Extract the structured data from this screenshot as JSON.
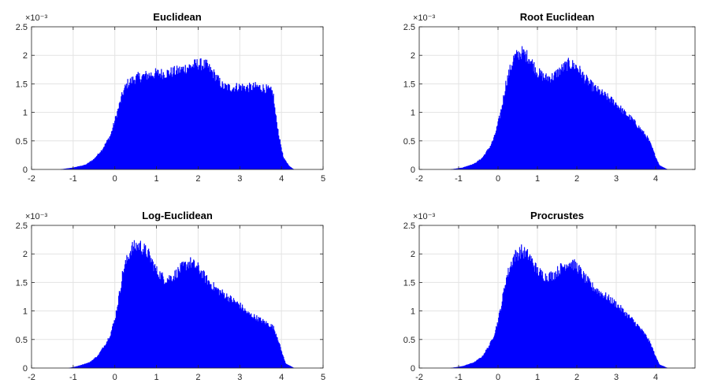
{
  "chart_data": [
    {
      "type": "area",
      "title": "Euclidean",
      "xlim": [
        -2,
        5
      ],
      "ylim": [
        0,
        2.5
      ],
      "y_scale_label": "×10⁻³",
      "xticks": [
        "-2",
        "-1",
        "0",
        "1",
        "2",
        "3",
        "4",
        "5"
      ],
      "yticks": [
        "0",
        "0.5",
        "1",
        "1.5",
        "2",
        "2.5"
      ],
      "grid": true,
      "color": "#0000ff",
      "x": [
        -1.3,
        -1.0,
        -0.7,
        -0.5,
        -0.3,
        -0.1,
        0.0,
        0.1,
        0.2,
        0.3,
        0.5,
        0.8,
        1.0,
        1.2,
        1.5,
        1.8,
        2.0,
        2.2,
        2.4,
        2.6,
        2.8,
        3.0,
        3.2,
        3.4,
        3.6,
        3.8,
        3.85,
        3.95,
        4.05,
        4.2,
        4.3
      ],
      "y": [
        0.0,
        0.03,
        0.08,
        0.18,
        0.35,
        0.6,
        0.85,
        1.1,
        1.35,
        1.5,
        1.6,
        1.65,
        1.68,
        1.68,
        1.72,
        1.8,
        1.85,
        1.82,
        1.65,
        1.45,
        1.43,
        1.45,
        1.43,
        1.45,
        1.42,
        1.35,
        1.0,
        0.55,
        0.2,
        0.05,
        0.0
      ]
    },
    {
      "type": "area",
      "title": "Root Euclidean",
      "xlim": [
        -2,
        5
      ],
      "ylim": [
        0,
        2.5
      ],
      "y_scale_label": "×10⁻³",
      "xticks": [
        "-2",
        "-1",
        "0",
        "1",
        "2",
        "3",
        "4"
      ],
      "yticks": [
        "0",
        "0.5",
        "1",
        "1.5",
        "2",
        "2.5"
      ],
      "grid": true,
      "color": "#0000ff",
      "x": [
        -1.2,
        -0.9,
        -0.6,
        -0.4,
        -0.2,
        -0.1,
        0.0,
        0.1,
        0.2,
        0.4,
        0.6,
        0.8,
        1.0,
        1.2,
        1.4,
        1.6,
        1.8,
        2.0,
        2.2,
        2.4,
        2.6,
        2.8,
        3.0,
        3.2,
        3.4,
        3.6,
        3.8,
        3.9,
        4.0,
        4.1,
        4.3
      ],
      "y": [
        0.0,
        0.03,
        0.1,
        0.2,
        0.4,
        0.55,
        0.8,
        1.1,
        1.5,
        1.95,
        2.05,
        1.95,
        1.7,
        1.6,
        1.62,
        1.75,
        1.85,
        1.8,
        1.6,
        1.45,
        1.35,
        1.25,
        1.15,
        1.0,
        0.88,
        0.72,
        0.55,
        0.4,
        0.22,
        0.07,
        0.0
      ]
    },
    {
      "type": "area",
      "title": "Log-Euclidean",
      "xlim": [
        -2,
        5
      ],
      "ylim": [
        0,
        2.5
      ],
      "y_scale_label": "×10⁻³",
      "xticks": [
        "-2",
        "-1",
        "0",
        "1",
        "2",
        "3",
        "4",
        "5"
      ],
      "yticks": [
        "0",
        "0.5",
        "1",
        "1.5",
        "2",
        "2.5"
      ],
      "grid": true,
      "color": "#0000ff",
      "x": [
        -1.1,
        -0.9,
        -0.6,
        -0.4,
        -0.2,
        -0.1,
        0.0,
        0.1,
        0.2,
        0.4,
        0.6,
        0.8,
        1.0,
        1.2,
        1.4,
        1.6,
        1.8,
        2.0,
        2.2,
        2.4,
        2.6,
        2.8,
        3.0,
        3.2,
        3.4,
        3.6,
        3.8,
        3.9,
        4.0,
        4.1,
        4.3
      ],
      "y": [
        0.0,
        0.03,
        0.1,
        0.22,
        0.45,
        0.6,
        0.85,
        1.25,
        1.7,
        2.1,
        2.15,
        2.0,
        1.7,
        1.55,
        1.6,
        1.75,
        1.85,
        1.75,
        1.55,
        1.4,
        1.3,
        1.2,
        1.1,
        0.95,
        0.88,
        0.8,
        0.72,
        0.55,
        0.3,
        0.08,
        0.0
      ]
    },
    {
      "type": "area",
      "title": "Procrustes",
      "xlim": [
        -2,
        5
      ],
      "ylim": [
        0,
        2.5
      ],
      "y_scale_label": "×10⁻³",
      "xticks": [
        "-2",
        "-1",
        "0",
        "1",
        "2",
        "3",
        "4"
      ],
      "yticks": [
        "0",
        "0.5",
        "1",
        "1.5",
        "2",
        "2.5"
      ],
      "grid": true,
      "color": "#0000ff",
      "x": [
        -1.2,
        -0.9,
        -0.6,
        -0.4,
        -0.2,
        -0.1,
        0.0,
        0.1,
        0.2,
        0.4,
        0.6,
        0.8,
        1.0,
        1.2,
        1.4,
        1.6,
        1.8,
        2.0,
        2.2,
        2.4,
        2.6,
        2.8,
        3.0,
        3.2,
        3.4,
        3.6,
        3.8,
        3.9,
        4.0,
        4.1,
        4.3
      ],
      "y": [
        0.0,
        0.03,
        0.1,
        0.2,
        0.42,
        0.58,
        0.82,
        1.15,
        1.55,
        1.95,
        2.05,
        1.95,
        1.7,
        1.6,
        1.62,
        1.75,
        1.85,
        1.78,
        1.58,
        1.42,
        1.32,
        1.22,
        1.12,
        0.98,
        0.85,
        0.7,
        0.52,
        0.38,
        0.2,
        0.06,
        0.0
      ]
    }
  ]
}
